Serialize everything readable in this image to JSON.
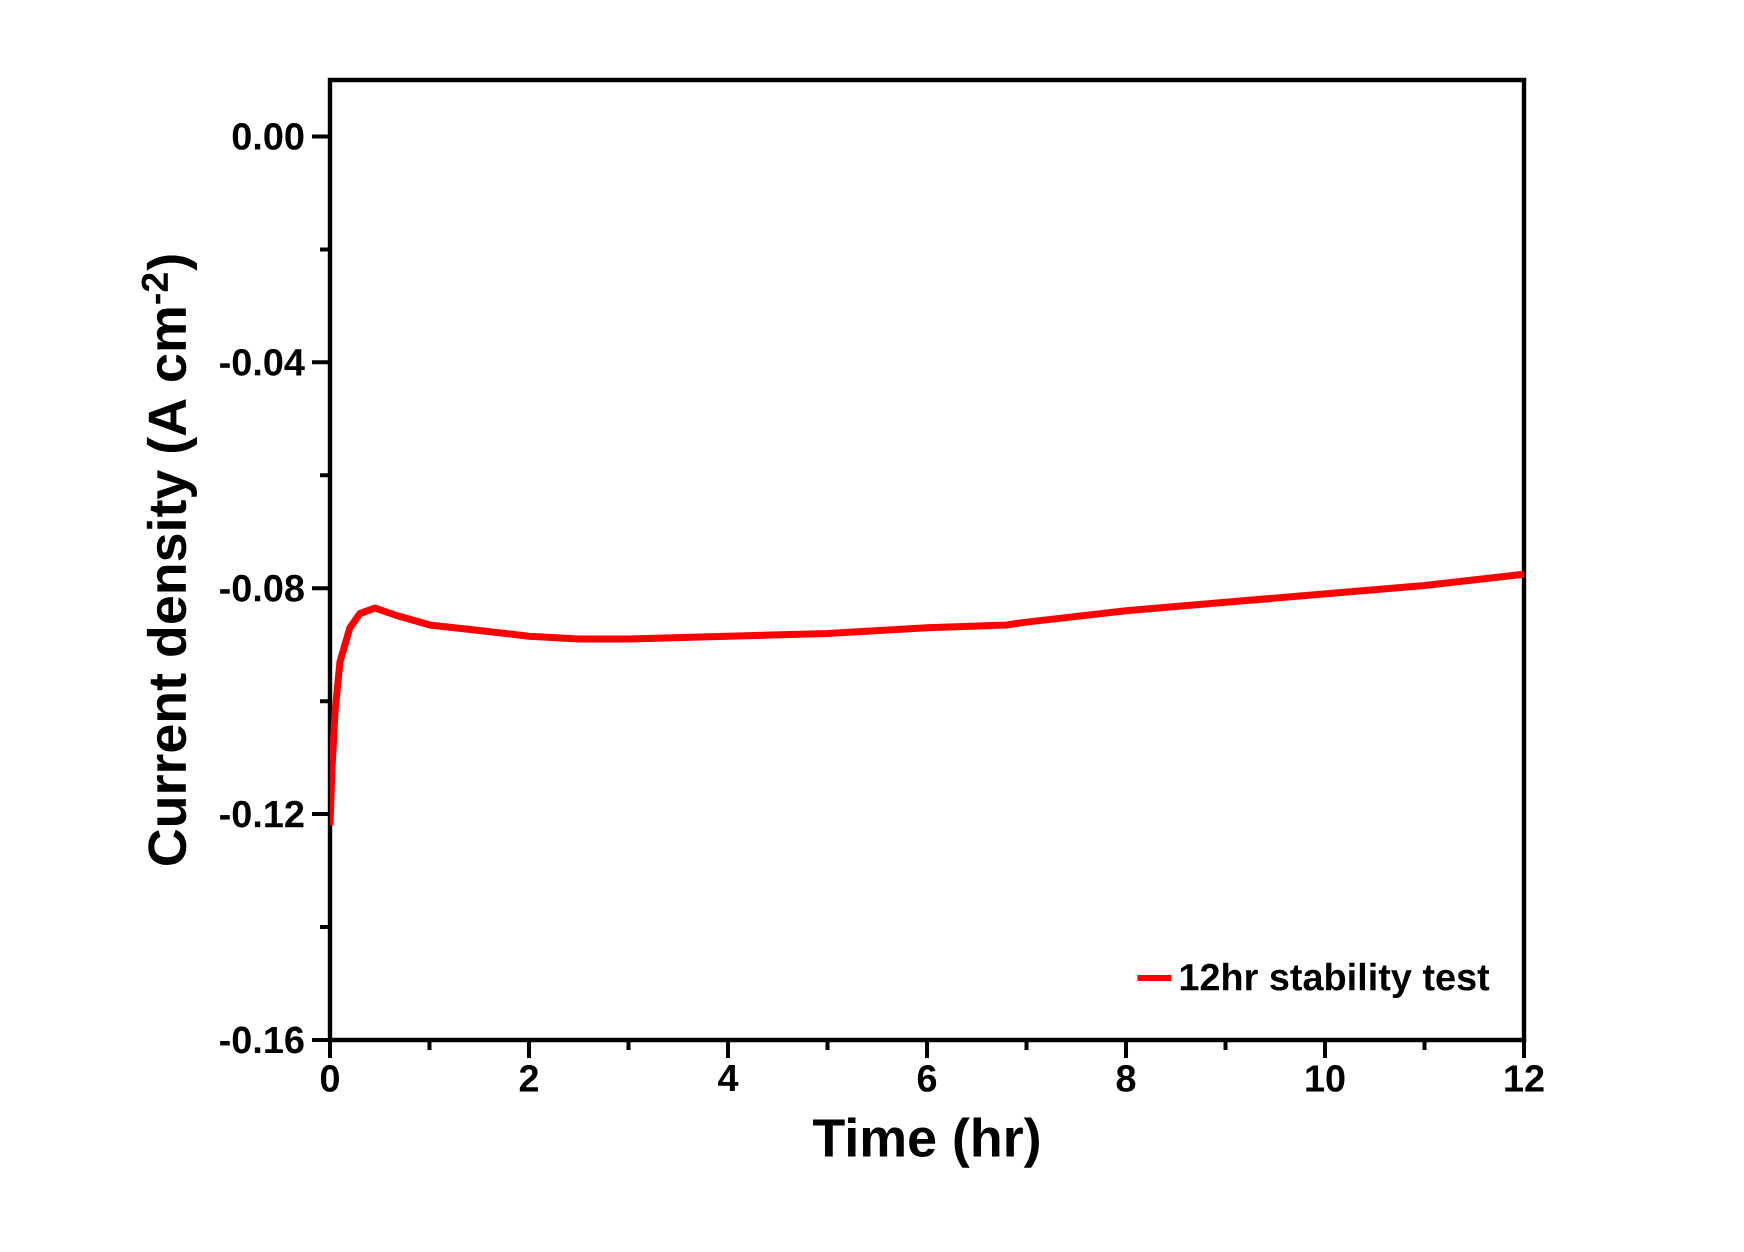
{
  "chart_data": {
    "type": "line",
    "xlabel": "Time (hr)",
    "ylabel": "Current density (A cm$^{-2}$)",
    "xlim": [
      0,
      12
    ],
    "ylim": [
      -0.16,
      0.01
    ],
    "xticks": [
      0,
      2,
      4,
      6,
      8,
      10,
      12
    ],
    "yticks": [
      {
        "value": 0,
        "label": "0.00"
      },
      {
        "value": -0.04,
        "label": "-0.04"
      },
      {
        "value": -0.08,
        "label": "-0.08"
      },
      {
        "value": -0.12,
        "label": "-0.12"
      },
      {
        "value": -0.16,
        "label": "-0.16"
      }
    ],
    "legend": "bottom right",
    "series": [
      {
        "name": "12hr stability test",
        "color": "#ff0000",
        "x": [
          0,
          0.02,
          0.05,
          0.1,
          0.2,
          0.3,
          0.45,
          0.7,
          1.0,
          1.5,
          2,
          2.5,
          3,
          4,
          5,
          6,
          6.8,
          7,
          8,
          9,
          10,
          11,
          12
        ],
        "values": [
          -0.122,
          -0.112,
          -0.102,
          -0.093,
          -0.087,
          -0.0845,
          -0.0835,
          -0.085,
          -0.0865,
          -0.0875,
          -0.0885,
          -0.089,
          -0.089,
          -0.0885,
          -0.088,
          -0.087,
          -0.0865,
          -0.086,
          -0.084,
          -0.0825,
          -0.081,
          -0.0795,
          -0.0775
        ]
      }
    ]
  }
}
